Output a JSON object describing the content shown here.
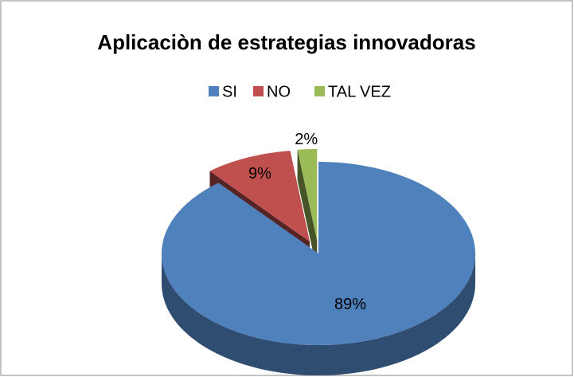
{
  "chart_data": {
    "type": "pie",
    "title": "Aplicaciòn de estrategias innovadoras",
    "categories": [
      "SI",
      "NO",
      "TAL VEZ"
    ],
    "values": [
      89,
      9,
      2
    ],
    "value_labels": [
      "89%",
      "9%",
      "2%"
    ],
    "colors": [
      "#4f81bd",
      "#c0504d",
      "#9bbb59"
    ],
    "legend": "top"
  }
}
